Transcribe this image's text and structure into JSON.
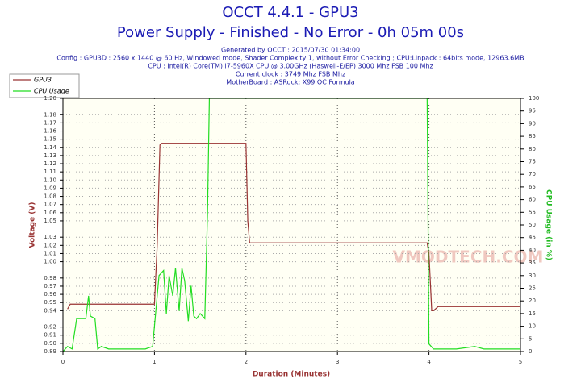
{
  "chart_data": {
    "type": "line",
    "title": "OCCT 4.4.1 - GPU3",
    "subtitle": "Power Supply - Finished - No Error - 0h 05m 00s",
    "info": [
      "Generated by OCCT : 2015/07/30 01:34:00",
      "Config : GPU3D : 2560 x 1440 @ 60 Hz, Windowed mode, Shader Complexity 1, without Error Checking ; CPU:Linpack : 64bits mode, 12963.6MB",
      "CPU : Intel(R) Core(TM) i7-5960X CPU @ 3.00GHz (Haswell-E/EP) 3000 Mhz FSB 100 Mhz",
      "Current clock : 3749 Mhz FSB  Mhz",
      "MotherBoard : ASRock: X99 OC Formula"
    ],
    "watermark": "VMODTECH.COM",
    "xlabel": "Duration (Minutes)",
    "ylabel": "Voltage (V)",
    "y2label": "CPU Usage (in %)",
    "xlim": [
      0,
      5
    ],
    "xticks": [
      0,
      1,
      2,
      3,
      4,
      5
    ],
    "ylim": [
      0.89,
      1.2
    ],
    "yticks": [
      {
        "value": 0.89,
        "label": "0.89"
      },
      {
        "value": 0.9,
        "label": "0.90"
      },
      {
        "value": 0.91,
        "label": "0.91"
      },
      {
        "value": 0.92,
        "label": "0.92"
      },
      {
        "value": 0.94,
        "label": "0.94"
      },
      {
        "value": 0.95,
        "label": "0.95"
      },
      {
        "value": 0.96,
        "label": "0.96"
      },
      {
        "value": 0.97,
        "label": "0.97"
      },
      {
        "value": 0.98,
        "label": "0.98"
      },
      {
        "value": 1.0,
        "label": "1.00"
      },
      {
        "value": 1.01,
        "label": "1.01"
      },
      {
        "value": 1.02,
        "label": "1.02"
      },
      {
        "value": 1.03,
        "label": "1.03"
      },
      {
        "value": 1.05,
        "label": "1.05"
      },
      {
        "value": 1.06,
        "label": "1.06"
      },
      {
        "value": 1.07,
        "label": "1.07"
      },
      {
        "value": 1.08,
        "label": "1.08"
      },
      {
        "value": 1.09,
        "label": "1.09"
      },
      {
        "value": 1.1,
        "label": "1.10"
      },
      {
        "value": 1.11,
        "label": "1.11"
      },
      {
        "value": 1.12,
        "label": "1.12"
      },
      {
        "value": 1.13,
        "label": "1.13"
      },
      {
        "value": 1.14,
        "label": "1.14"
      },
      {
        "value": 1.15,
        "label": "1.15"
      },
      {
        "value": 1.16,
        "label": "1.16"
      },
      {
        "value": 1.17,
        "label": "1.17"
      },
      {
        "value": 1.18,
        "label": "1.18"
      },
      {
        "value": 1.2,
        "label": "1.20"
      }
    ],
    "y2lim": [
      0,
      100
    ],
    "y2ticks": [
      0,
      5,
      10,
      15,
      20,
      25,
      30,
      35,
      40,
      45,
      50,
      55,
      60,
      65,
      70,
      75,
      80,
      85,
      90,
      95,
      100
    ],
    "grid": true,
    "legend": "top-left",
    "series": [
      {
        "name": "GPU3",
        "color": "#993333",
        "x": [
          0.05,
          0.08,
          0.1,
          1.0,
          1.03,
          1.06,
          1.08,
          2.0,
          2.02,
          2.04,
          3.98,
          4.0,
          4.03,
          4.05,
          4.1,
          5.0
        ],
        "values": [
          0.942,
          0.948,
          0.948,
          0.948,
          1.02,
          1.143,
          1.145,
          1.145,
          1.05,
          1.023,
          1.023,
          1.01,
          0.94,
          0.94,
          0.945,
          0.945
        ]
      },
      {
        "name": "CPU Usage",
        "color": "#22dd22",
        "axis": "y2",
        "x": [
          0.0,
          0.05,
          0.1,
          0.15,
          0.2,
          0.25,
          0.28,
          0.3,
          0.35,
          0.38,
          0.42,
          0.5,
          0.6,
          0.7,
          0.8,
          0.9,
          0.98,
          1.02,
          1.05,
          1.1,
          1.13,
          1.16,
          1.2,
          1.23,
          1.27,
          1.3,
          1.33,
          1.37,
          1.4,
          1.43,
          1.46,
          1.5,
          1.55,
          1.58,
          1.6,
          2.0,
          3.0,
          3.98,
          4.0,
          4.05,
          4.3,
          4.5,
          4.6,
          4.8,
          5.0
        ],
        "values": [
          0,
          2,
          1,
          13,
          13,
          13,
          22,
          14,
          13,
          1,
          2,
          1,
          1,
          1,
          1,
          1,
          2,
          18,
          30,
          32,
          15,
          30,
          22,
          33,
          16,
          33,
          28,
          12,
          26,
          14,
          13,
          15,
          13,
          55,
          100,
          100,
          100,
          100,
          3,
          1,
          1,
          2,
          1,
          1,
          1
        ]
      }
    ]
  }
}
